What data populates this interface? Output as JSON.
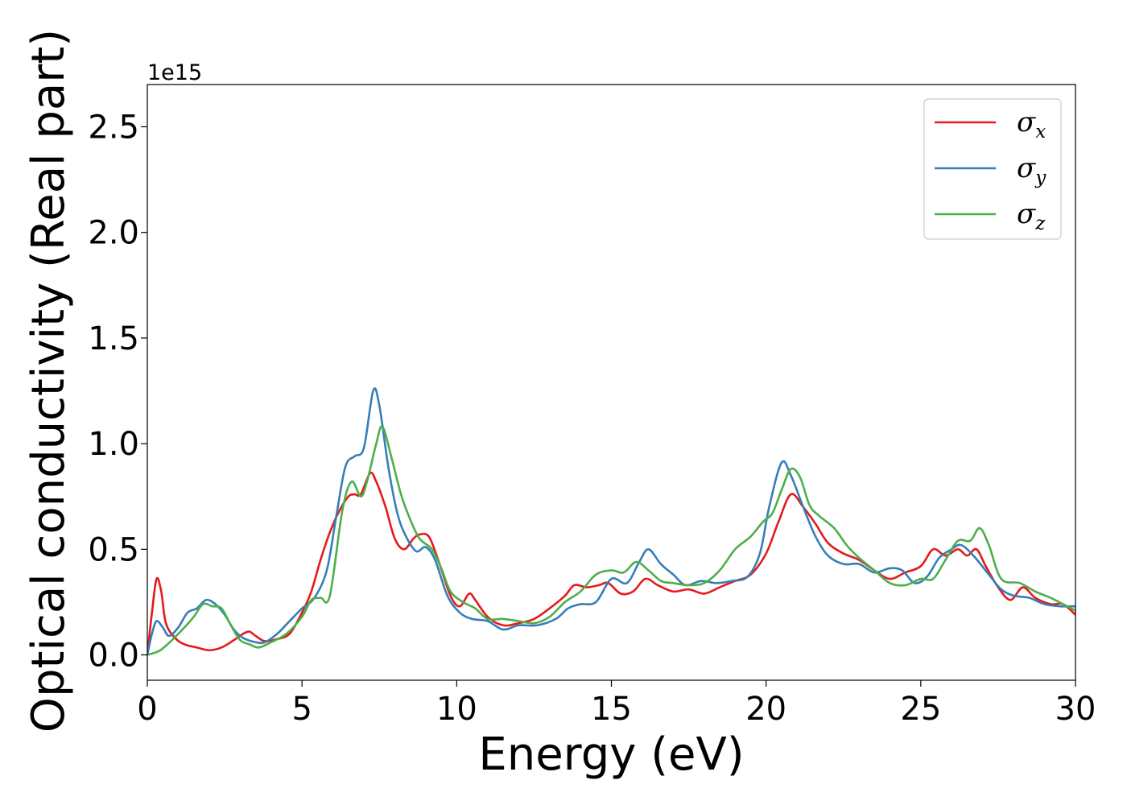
{
  "chart_data": {
    "type": "line",
    "xlabel": "Energy (eV)",
    "ylabel": "Optical conductivity (Real part)",
    "y_offset_label": "1e15",
    "xlim": [
      0,
      30
    ],
    "ylim": [
      -0.12,
      2.7
    ],
    "xticks": [
      0,
      5,
      10,
      15,
      20,
      25,
      30
    ],
    "xtick_labels": [
      "0",
      "5",
      "10",
      "15",
      "20",
      "25",
      "30"
    ],
    "yticks": [
      0.0,
      0.5,
      1.0,
      1.5,
      2.0,
      2.5
    ],
    "ytick_labels": [
      "0.0",
      "0.5",
      "1.0",
      "1.5",
      "2.0",
      "2.5"
    ],
    "grid": false,
    "legend_position": "top-right",
    "series": [
      {
        "name": "σx",
        "base": "σ",
        "sub": "x",
        "color": "#e41a1c",
        "points": [
          [
            0,
            0
          ],
          [
            0.15,
            0.2
          ],
          [
            0.3,
            0.36
          ],
          [
            0.45,
            0.3
          ],
          [
            0.6,
            0.15
          ],
          [
            0.9,
            0.08
          ],
          [
            1.2,
            0.05
          ],
          [
            1.6,
            0.035
          ],
          [
            2.0,
            0.022
          ],
          [
            2.4,
            0.035
          ],
          [
            2.8,
            0.07
          ],
          [
            3.1,
            0.1
          ],
          [
            3.3,
            0.11
          ],
          [
            3.5,
            0.09
          ],
          [
            3.8,
            0.065
          ],
          [
            4.2,
            0.075
          ],
          [
            4.6,
            0.1
          ],
          [
            5.0,
            0.2
          ],
          [
            5.3,
            0.3
          ],
          [
            5.6,
            0.45
          ],
          [
            5.9,
            0.58
          ],
          [
            6.2,
            0.68
          ],
          [
            6.5,
            0.75
          ],
          [
            6.7,
            0.76
          ],
          [
            6.9,
            0.76
          ],
          [
            7.2,
            0.86
          ],
          [
            7.4,
            0.82
          ],
          [
            7.7,
            0.7
          ],
          [
            8.0,
            0.55
          ],
          [
            8.3,
            0.5
          ],
          [
            8.6,
            0.55
          ],
          [
            8.8,
            0.57
          ],
          [
            9.1,
            0.56
          ],
          [
            9.4,
            0.45
          ],
          [
            9.8,
            0.28
          ],
          [
            10.1,
            0.23
          ],
          [
            10.4,
            0.29
          ],
          [
            10.6,
            0.26
          ],
          [
            11.0,
            0.18
          ],
          [
            11.5,
            0.14
          ],
          [
            12.0,
            0.15
          ],
          [
            12.5,
            0.17
          ],
          [
            13.0,
            0.22
          ],
          [
            13.5,
            0.28
          ],
          [
            13.8,
            0.33
          ],
          [
            14.2,
            0.32
          ],
          [
            14.6,
            0.33
          ],
          [
            14.9,
            0.34
          ],
          [
            15.3,
            0.29
          ],
          [
            15.7,
            0.3
          ],
          [
            16.1,
            0.36
          ],
          [
            16.5,
            0.33
          ],
          [
            17.0,
            0.3
          ],
          [
            17.5,
            0.31
          ],
          [
            18.0,
            0.29
          ],
          [
            18.5,
            0.32
          ],
          [
            19.0,
            0.35
          ],
          [
            19.5,
            0.38
          ],
          [
            20.0,
            0.48
          ],
          [
            20.4,
            0.63
          ],
          [
            20.8,
            0.76
          ],
          [
            21.2,
            0.7
          ],
          [
            21.6,
            0.62
          ],
          [
            22.0,
            0.53
          ],
          [
            22.5,
            0.48
          ],
          [
            23.0,
            0.45
          ],
          [
            23.5,
            0.4
          ],
          [
            24.0,
            0.36
          ],
          [
            24.5,
            0.39
          ],
          [
            25.0,
            0.42
          ],
          [
            25.4,
            0.5
          ],
          [
            25.8,
            0.47
          ],
          [
            26.2,
            0.5
          ],
          [
            26.5,
            0.47
          ],
          [
            26.8,
            0.5
          ],
          [
            27.1,
            0.42
          ],
          [
            27.5,
            0.32
          ],
          [
            27.9,
            0.26
          ],
          [
            28.3,
            0.32
          ],
          [
            28.7,
            0.27
          ],
          [
            29.2,
            0.24
          ],
          [
            29.6,
            0.24
          ],
          [
            30.0,
            0.19
          ]
        ]
      },
      {
        "name": "σy",
        "base": "σ",
        "sub": "y",
        "color": "#377eb8",
        "points": [
          [
            0,
            0
          ],
          [
            0.15,
            0.1
          ],
          [
            0.3,
            0.16
          ],
          [
            0.5,
            0.13
          ],
          [
            0.7,
            0.09
          ],
          [
            1.0,
            0.13
          ],
          [
            1.3,
            0.2
          ],
          [
            1.6,
            0.22
          ],
          [
            1.9,
            0.26
          ],
          [
            2.2,
            0.24
          ],
          [
            2.5,
            0.19
          ],
          [
            2.8,
            0.12
          ],
          [
            3.1,
            0.08
          ],
          [
            3.5,
            0.06
          ],
          [
            3.8,
            0.06
          ],
          [
            4.2,
            0.1
          ],
          [
            4.6,
            0.16
          ],
          [
            5.0,
            0.22
          ],
          [
            5.4,
            0.27
          ],
          [
            5.8,
            0.4
          ],
          [
            6.1,
            0.65
          ],
          [
            6.4,
            0.89
          ],
          [
            6.7,
            0.94
          ],
          [
            7.0,
            0.98
          ],
          [
            7.3,
            1.25
          ],
          [
            7.5,
            1.18
          ],
          [
            7.8,
            0.88
          ],
          [
            8.1,
            0.66
          ],
          [
            8.4,
            0.55
          ],
          [
            8.7,
            0.49
          ],
          [
            9.0,
            0.51
          ],
          [
            9.3,
            0.45
          ],
          [
            9.7,
            0.28
          ],
          [
            10.1,
            0.2
          ],
          [
            10.5,
            0.17
          ],
          [
            11.0,
            0.16
          ],
          [
            11.5,
            0.12
          ],
          [
            12.0,
            0.14
          ],
          [
            12.6,
            0.14
          ],
          [
            13.2,
            0.17
          ],
          [
            13.6,
            0.22
          ],
          [
            14.0,
            0.24
          ],
          [
            14.5,
            0.25
          ],
          [
            15.0,
            0.36
          ],
          [
            15.5,
            0.34
          ],
          [
            15.9,
            0.44
          ],
          [
            16.2,
            0.5
          ],
          [
            16.6,
            0.43
          ],
          [
            17.0,
            0.38
          ],
          [
            17.4,
            0.33
          ],
          [
            17.9,
            0.35
          ],
          [
            18.4,
            0.34
          ],
          [
            18.9,
            0.35
          ],
          [
            19.4,
            0.37
          ],
          [
            19.8,
            0.48
          ],
          [
            20.1,
            0.7
          ],
          [
            20.5,
            0.91
          ],
          [
            20.8,
            0.85
          ],
          [
            21.2,
            0.7
          ],
          [
            21.6,
            0.56
          ],
          [
            22.0,
            0.47
          ],
          [
            22.5,
            0.43
          ],
          [
            23.0,
            0.43
          ],
          [
            23.5,
            0.39
          ],
          [
            24.0,
            0.41
          ],
          [
            24.4,
            0.4
          ],
          [
            24.8,
            0.34
          ],
          [
            25.2,
            0.37
          ],
          [
            25.6,
            0.46
          ],
          [
            26.0,
            0.5
          ],
          [
            26.3,
            0.52
          ],
          [
            26.7,
            0.47
          ],
          [
            27.2,
            0.38
          ],
          [
            27.6,
            0.31
          ],
          [
            28.0,
            0.28
          ],
          [
            28.5,
            0.27
          ],
          [
            29.0,
            0.24
          ],
          [
            29.5,
            0.23
          ],
          [
            30.0,
            0.23
          ]
        ]
      },
      {
        "name": "σz",
        "base": "σ",
        "sub": "z",
        "color": "#4daf4a",
        "points": [
          [
            0,
            0
          ],
          [
            0.4,
            0.02
          ],
          [
            0.8,
            0.07
          ],
          [
            1.2,
            0.13
          ],
          [
            1.5,
            0.18
          ],
          [
            1.8,
            0.24
          ],
          [
            2.1,
            0.23
          ],
          [
            2.4,
            0.22
          ],
          [
            2.7,
            0.14
          ],
          [
            3.0,
            0.07
          ],
          [
            3.3,
            0.05
          ],
          [
            3.6,
            0.035
          ],
          [
            4.0,
            0.06
          ],
          [
            4.5,
            0.1
          ],
          [
            5.0,
            0.18
          ],
          [
            5.3,
            0.26
          ],
          [
            5.6,
            0.27
          ],
          [
            5.9,
            0.28
          ],
          [
            6.3,
            0.68
          ],
          [
            6.6,
            0.82
          ],
          [
            6.9,
            0.75
          ],
          [
            7.1,
            0.82
          ],
          [
            7.4,
            1.0
          ],
          [
            7.6,
            1.08
          ],
          [
            7.9,
            0.93
          ],
          [
            8.2,
            0.76
          ],
          [
            8.5,
            0.64
          ],
          [
            8.8,
            0.55
          ],
          [
            9.2,
            0.5
          ],
          [
            9.5,
            0.41
          ],
          [
            9.8,
            0.3
          ],
          [
            10.2,
            0.25
          ],
          [
            10.6,
            0.22
          ],
          [
            11.0,
            0.17
          ],
          [
            11.5,
            0.17
          ],
          [
            12.0,
            0.16
          ],
          [
            12.5,
            0.15
          ],
          [
            13.0,
            0.18
          ],
          [
            13.5,
            0.25
          ],
          [
            14.0,
            0.3
          ],
          [
            14.5,
            0.38
          ],
          [
            15.0,
            0.4
          ],
          [
            15.4,
            0.39
          ],
          [
            15.8,
            0.44
          ],
          [
            16.2,
            0.4
          ],
          [
            16.6,
            0.35
          ],
          [
            17.0,
            0.34
          ],
          [
            17.5,
            0.33
          ],
          [
            18.0,
            0.34
          ],
          [
            18.5,
            0.4
          ],
          [
            19.0,
            0.5
          ],
          [
            19.5,
            0.56
          ],
          [
            19.9,
            0.63
          ],
          [
            20.2,
            0.67
          ],
          [
            20.5,
            0.78
          ],
          [
            20.8,
            0.88
          ],
          [
            21.1,
            0.84
          ],
          [
            21.4,
            0.71
          ],
          [
            21.7,
            0.66
          ],
          [
            22.2,
            0.6
          ],
          [
            22.6,
            0.52
          ],
          [
            23.0,
            0.46
          ],
          [
            23.5,
            0.4
          ],
          [
            24.0,
            0.34
          ],
          [
            24.5,
            0.33
          ],
          [
            25.0,
            0.36
          ],
          [
            25.4,
            0.36
          ],
          [
            25.8,
            0.45
          ],
          [
            26.2,
            0.54
          ],
          [
            26.6,
            0.54
          ],
          [
            26.9,
            0.6
          ],
          [
            27.2,
            0.52
          ],
          [
            27.6,
            0.36
          ],
          [
            28.2,
            0.34
          ],
          [
            28.7,
            0.3
          ],
          [
            29.2,
            0.27
          ],
          [
            29.6,
            0.24
          ],
          [
            30.0,
            0.21
          ]
        ]
      }
    ]
  }
}
